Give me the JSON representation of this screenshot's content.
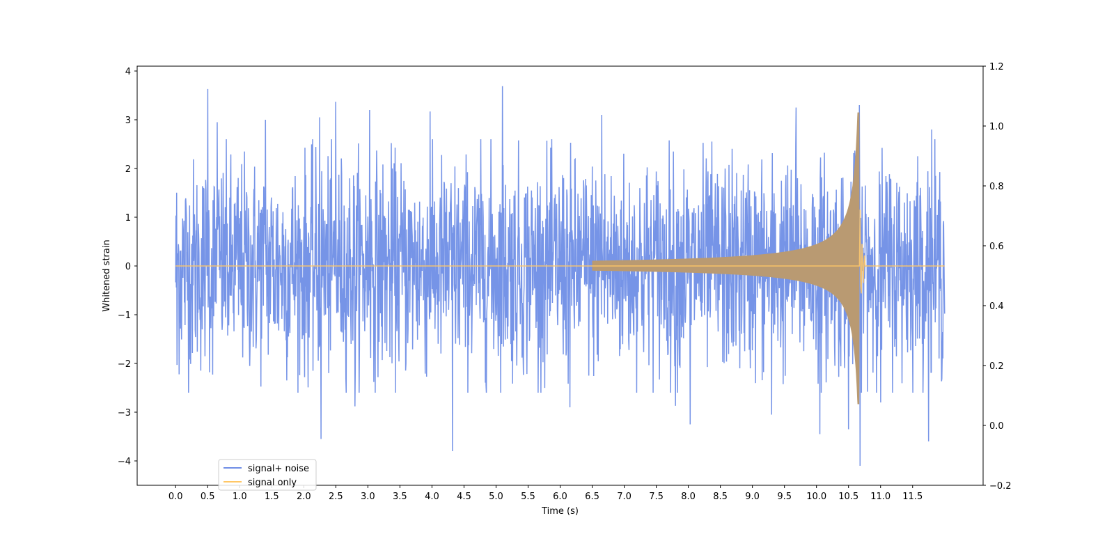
{
  "chart_data": {
    "type": "line",
    "title": "",
    "xlabel": "Time (s)",
    "ylabel": "Whitened strain",
    "xlim": [
      -0.6,
      12.6
    ],
    "ylim": [
      -4.5,
      4.1
    ],
    "y2lim": [
      -0.2,
      1.2
    ],
    "xticks": [
      0.0,
      0.5,
      1.0,
      1.5,
      2.0,
      2.5,
      3.0,
      3.5,
      4.0,
      4.5,
      5.0,
      5.5,
      6.0,
      6.5,
      7.0,
      7.5,
      8.0,
      8.5,
      9.0,
      9.5,
      10.0,
      10.5,
      11.0,
      11.5
    ],
    "xtick_labels": [
      "0.0",
      "0.5",
      "1.0",
      "1.5",
      "2.0",
      "2.5",
      "3.0",
      "3.5",
      "4.0",
      "4.5",
      "5.0",
      "5.5",
      "6.0",
      "6.5",
      "7.0",
      "7.5",
      "8.0",
      "8.5",
      "9.0",
      "9.5",
      "10.0",
      "10.5",
      "11.0",
      "11.5"
    ],
    "yticks": [
      -4,
      -3,
      -2,
      -1,
      0,
      1,
      2,
      3,
      4
    ],
    "ytick_labels": [
      "−4",
      "−3",
      "−2",
      "−1",
      "0",
      "1",
      "2",
      "3",
      "4"
    ],
    "y2ticks": [
      -0.2,
      0.0,
      0.2,
      0.4,
      0.6,
      0.8,
      1.0,
      1.2
    ],
    "y2tick_labels": [
      "−0.2",
      "0.0",
      "0.2",
      "0.4",
      "0.6",
      "0.8",
      "1.0",
      "1.2"
    ],
    "grid": false,
    "legend_position": "lower-left",
    "series": [
      {
        "name": "signal+ noise",
        "color": "#6f8ee6",
        "description_values": {
          "x_range": [
            0.0,
            12.0
          ],
          "typical_amplitude": 1.8,
          "peaks": [
            [
              0.02,
              2.37
            ],
            [
              0.02,
              -2.03
            ],
            [
              0.5,
              3.63
            ],
            [
              0.65,
              2.95
            ],
            [
              1.4,
              3.0
            ],
            [
              2.27,
              -3.55
            ],
            [
              2.25,
              3.05
            ],
            [
              2.5,
              3.37
            ],
            [
              2.8,
              -2.88
            ],
            [
              3.03,
              3.2
            ],
            [
              3.97,
              3.17
            ],
            [
              4.32,
              -3.8
            ],
            [
              5.1,
              3.69
            ],
            [
              6.15,
              -2.9
            ],
            [
              6.65,
              3.1
            ],
            [
              7.8,
              -2.87
            ],
            [
              8.03,
              -3.25
            ],
            [
              9.3,
              -3.05
            ],
            [
              9.68,
              3.25
            ],
            [
              10.05,
              -3.45
            ],
            [
              10.5,
              -3.35
            ],
            [
              10.67,
              3.3
            ],
            [
              10.68,
              -4.1
            ],
            [
              11.0,
              -2.8
            ],
            [
              11.75,
              -3.6
            ],
            [
              11.8,
              2.8
            ]
          ]
        }
      },
      {
        "name": "signal only",
        "color": "#ffc766",
        "description_values": {
          "onset_time": 6.5,
          "merger_time": 10.67,
          "peak_amplitude": 3.15,
          "amplitude_at_10s": 0.45,
          "post_merger_amplitude": 0.02
        }
      }
    ]
  }
}
